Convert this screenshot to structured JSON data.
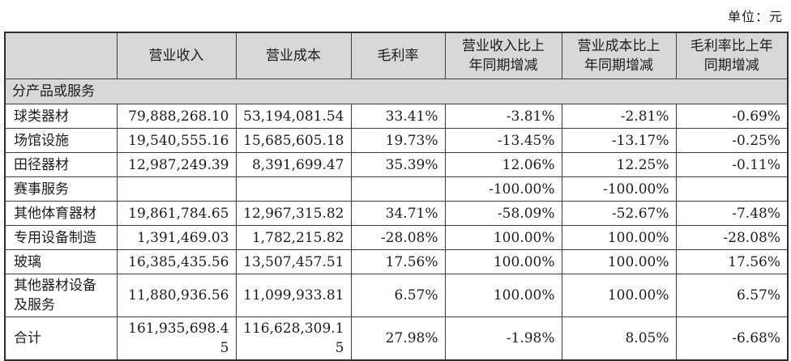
{
  "unit_label": "单位：元",
  "table": {
    "columns": [
      "",
      "营业收入",
      "营业成本",
      "毛利率",
      "营业收入比上\n年同期增减",
      "营业成本比上\n年同期增减",
      "毛利率比上年\n同期增减"
    ],
    "section_header": "分产品或服务",
    "rows": [
      [
        "球类器材",
        "79,888,268.10",
        "53,194,081.54",
        "33.41%",
        "-3.81%",
        "-2.81%",
        "-0.69%"
      ],
      [
        "场馆设施",
        "19,540,555.16",
        "15,685,605.18",
        "19.73%",
        "-13.45%",
        "-13.17%",
        "-0.25%"
      ],
      [
        "田径器材",
        "12,987,249.39",
        "8,391,699.47",
        "35.39%",
        "12.06%",
        "12.25%",
        "-0.11%"
      ],
      [
        "赛事服务",
        "",
        "",
        "",
        "-100.00%",
        "-100.00%",
        ""
      ],
      [
        "其他体育器材",
        "19,861,784.65",
        "12,967,315.82",
        "34.71%",
        "-58.09%",
        "-52.67%",
        "-7.48%"
      ],
      [
        "专用设备制造",
        "1,391,469.03",
        "1,782,215.82",
        "-28.08%",
        "100.00%",
        "100.00%",
        "-28.08%"
      ],
      [
        "玻璃",
        "16,385,435.56",
        "13,507,457.51",
        "17.56%",
        "100.00%",
        "100.00%",
        "17.56%"
      ],
      [
        "其他器材设备\n及服务",
        "11,880,936.56",
        "11,099,933.81",
        "6.57%",
        "100.00%",
        "100.00%",
        "6.57%"
      ],
      [
        "合计",
        "161,935,698.45",
        "116,628,309.15",
        "27.98%",
        "-1.98%",
        "8.05%",
        "-6.68%"
      ]
    ],
    "colors": {
      "header_bg": "#d8d8d8",
      "section_bg": "#d8d8d8",
      "border": "#3d3d3d",
      "text": "#1c1c1c"
    }
  }
}
